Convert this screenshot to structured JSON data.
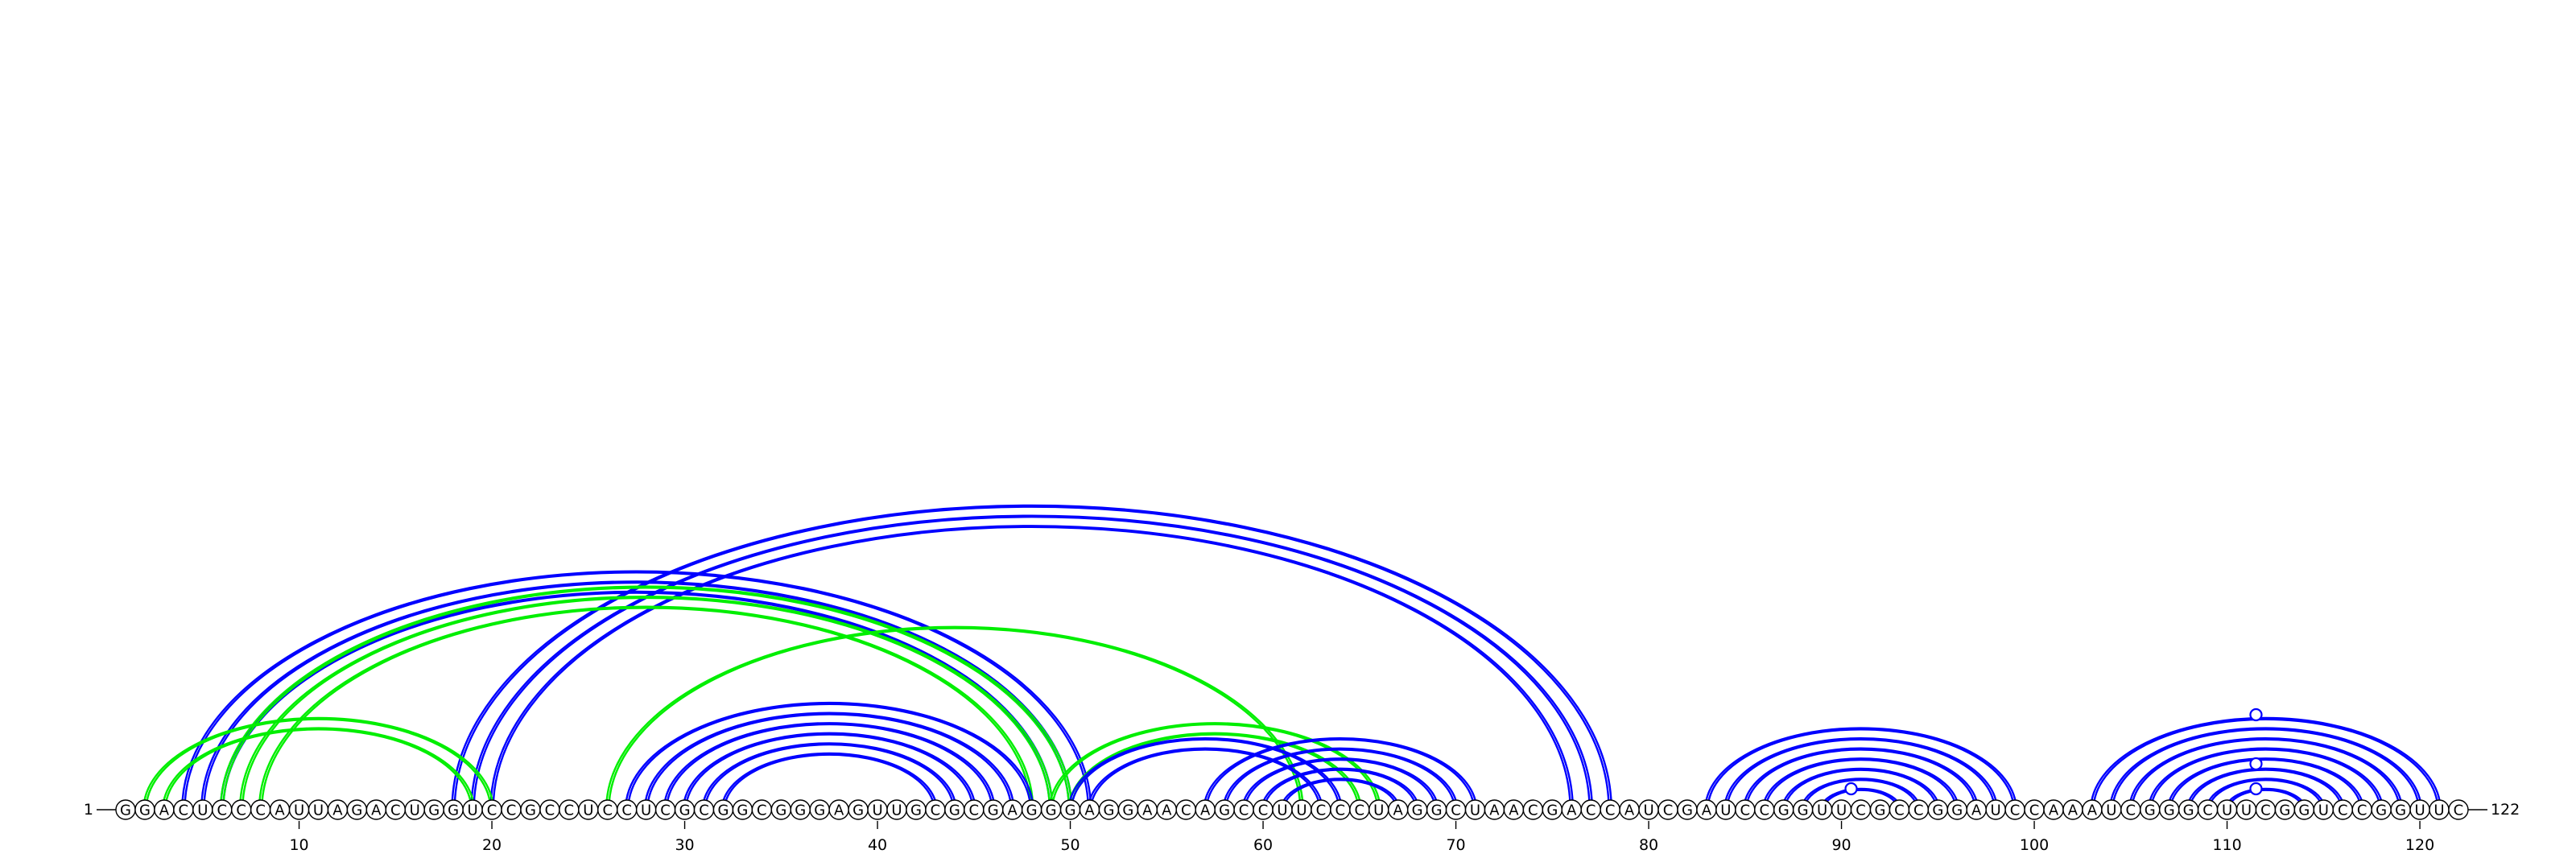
{
  "sequence": "GGACUCCCAUUAGACUGGUCCGCCUCCUCGCGGCGGGAGUUGCGCGAGGGAGGAACAGCCUUCCCUAGGCUAACGACCAUCGAUCCGGUUCGCCGGAUCCAAAUCGGGCUUCGGUCCGGUUC",
  "start_label": "1",
  "end_label": "122",
  "tick_labels": [
    "10",
    "20",
    "30",
    "40",
    "50",
    "60",
    "70",
    "80",
    "90",
    "100",
    "110",
    "120"
  ],
  "colors": {
    "blue": "#0000ff",
    "green": "#00ee00",
    "backbone": "#000000"
  },
  "arc_groups": [
    {
      "color": "blue",
      "pairs": [
        [
          4,
          51
        ],
        [
          5,
          50
        ],
        [
          6,
          49
        ],
        [
          18,
          78
        ],
        [
          19,
          77
        ],
        [
          20,
          76
        ]
      ]
    },
    {
      "color": "green",
      "pairs": [
        [
          2,
          20
        ],
        [
          3,
          19
        ],
        [
          6,
          50
        ],
        [
          7,
          49
        ],
        [
          8,
          48
        ],
        [
          26,
          62
        ]
      ]
    },
    {
      "color": "blue",
      "pairs": [
        [
          27,
          48
        ],
        [
          28,
          47
        ],
        [
          29,
          46
        ],
        [
          30,
          45
        ],
        [
          31,
          44
        ],
        [
          32,
          43
        ]
      ]
    },
    {
      "color": "green",
      "pairs": [
        [
          49,
          66
        ],
        [
          50,
          65
        ]
      ]
    },
    {
      "color": "blue",
      "pairs": [
        [
          50,
          64
        ],
        [
          51,
          63
        ],
        [
          57,
          71
        ],
        [
          58,
          70
        ],
        [
          59,
          69
        ],
        [
          60,
          68
        ],
        [
          61,
          67
        ]
      ]
    },
    {
      "color": "blue",
      "pairs": [
        [
          83,
          99
        ],
        [
          84,
          98
        ],
        [
          85,
          97
        ],
        [
          86,
          96
        ],
        [
          87,
          95
        ],
        [
          88,
          94
        ],
        [
          89,
          93
        ]
      ]
    },
    {
      "color": "blue",
      "pairs": [
        [
          103,
          121
        ],
        [
          104,
          120
        ],
        [
          105,
          119
        ],
        [
          106,
          118
        ],
        [
          107,
          117
        ],
        [
          108,
          116
        ],
        [
          109,
          115
        ],
        [
          110,
          114
        ]
      ]
    }
  ],
  "loop_markers": [
    90.5,
    111.5,
    111.5,
    111.5
  ]
}
